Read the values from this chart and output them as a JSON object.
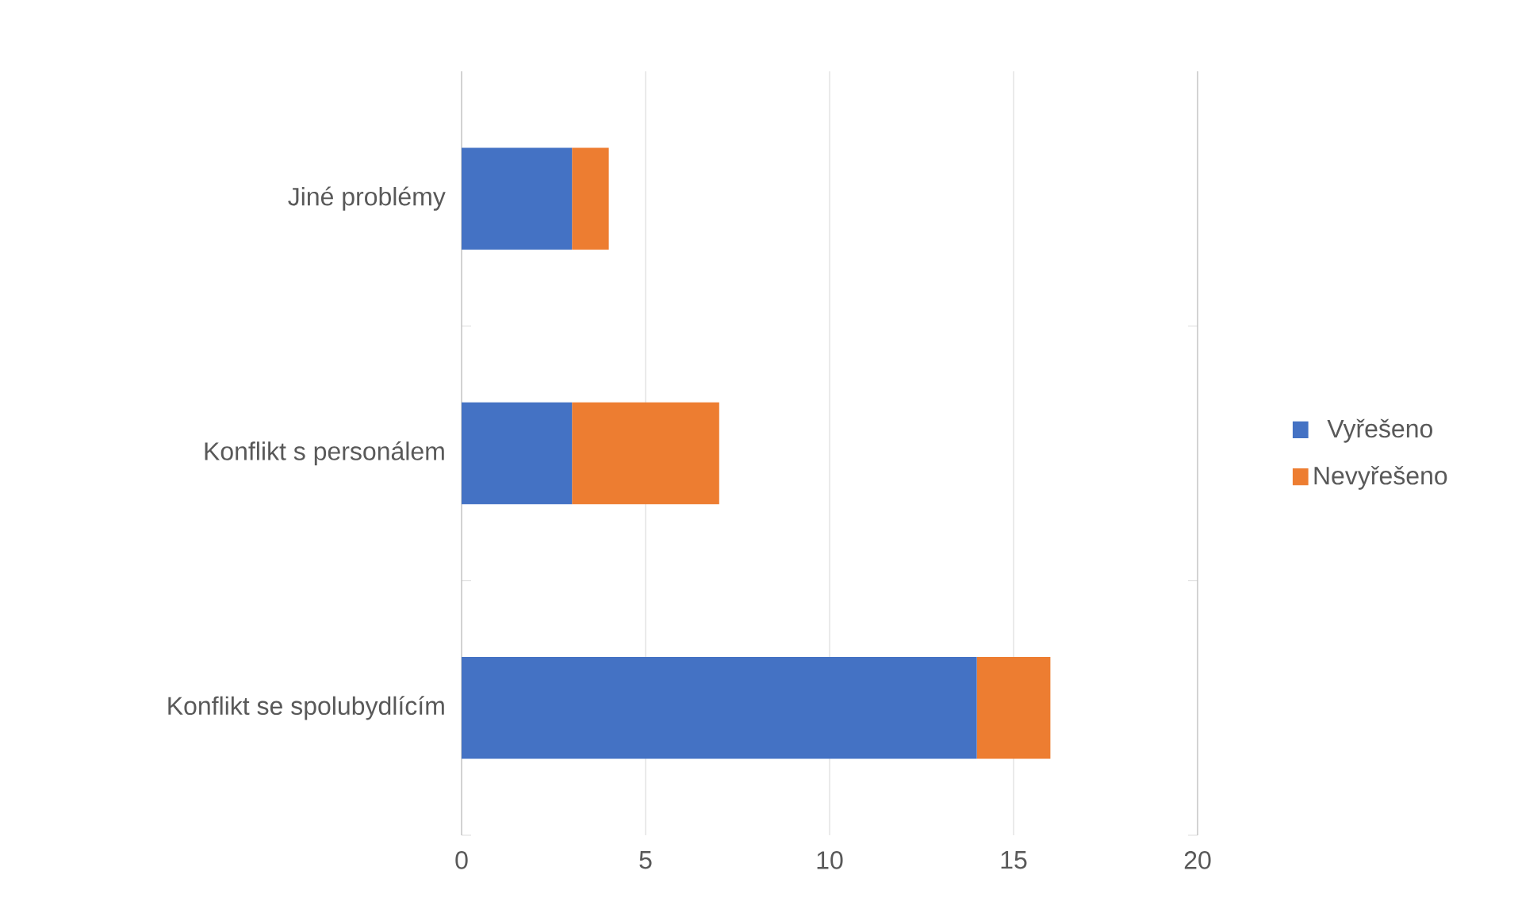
{
  "chart_data": {
    "type": "bar",
    "orientation": "horizontal",
    "stacked": true,
    "categories": [
      "Jiné problémy",
      "Konflikt s personálem",
      "Konflikt se spolubydlícím"
    ],
    "series": [
      {
        "name": "Vyřešeno",
        "color": "#4472c4",
        "values": [
          3,
          3,
          14
        ]
      },
      {
        "name": "Nevyřešeno",
        "color": "#ed7d31",
        "values": [
          1,
          4,
          2
        ]
      }
    ],
    "xlim": [
      0,
      20
    ],
    "xticks": [
      0,
      5,
      10,
      15,
      20
    ],
    "grid": "x",
    "legend": "right"
  }
}
